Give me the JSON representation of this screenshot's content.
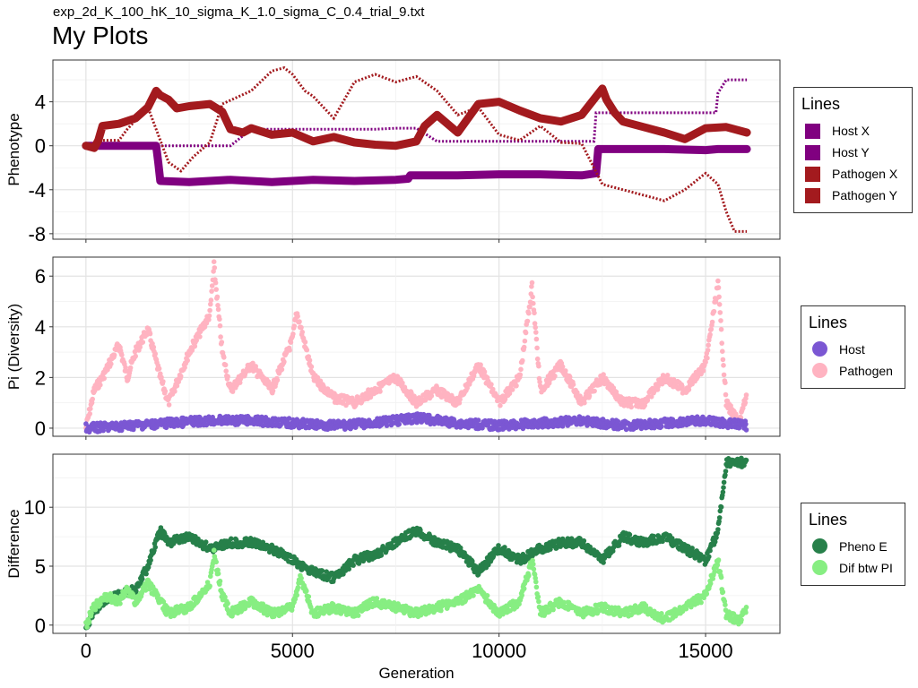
{
  "header": {
    "file_title": "exp_2d_K_100_hK_10_sigma_K_1.0_sigma_C_0.4_trial_9.txt",
    "main_title": "My Plots"
  },
  "chart_data": [
    {
      "type": "line",
      "ylabel": "Phenotype",
      "xlim": [
        -800,
        16800
      ],
      "ylim": [
        -8.5,
        7.8
      ],
      "yticks": [
        -8,
        -4,
        0,
        4
      ],
      "xticks": [
        0,
        5000,
        10000,
        15000
      ],
      "legend": {
        "title": "Lines",
        "position": "right",
        "entries": [
          {
            "label": "Host X",
            "color": "#800080"
          },
          {
            "label": "Host Y",
            "color": "#800080"
          },
          {
            "label": "Pathogen X",
            "color": "#A31A1E"
          },
          {
            "label": "Pathogen Y",
            "color": "#A31A1E"
          }
        ]
      },
      "series": [
        {
          "name": "Host X",
          "color": "#800080",
          "style": "thick",
          "x": [
            0,
            400,
            1000,
            1700,
            1750,
            1800,
            2500,
            3500,
            4500,
            5500,
            6500,
            7500,
            7800,
            7850,
            9000,
            10000,
            11000,
            12000,
            12350,
            12400,
            13000,
            14000,
            15000,
            15300,
            16000
          ],
          "y": [
            0,
            0,
            0,
            0,
            -1.5,
            -3.2,
            -3.3,
            -3.1,
            -3.3,
            -3.1,
            -3.2,
            -3.1,
            -3.0,
            -2.7,
            -2.7,
            -2.6,
            -2.6,
            -2.7,
            -2.5,
            -0.3,
            -0.3,
            -0.3,
            -0.4,
            -0.3,
            -0.3
          ]
        },
        {
          "name": "Host Y",
          "color": "#800080",
          "style": "dotted",
          "x": [
            0,
            500,
            1000,
            1500,
            2000,
            2500,
            3000,
            3500,
            4000,
            4500,
            5000,
            5500,
            6000,
            6500,
            7000,
            7500,
            8000,
            8500,
            9000,
            9500,
            10000,
            10500,
            11000,
            12000,
            12300,
            12350,
            13000,
            14000,
            15000,
            15250,
            15300,
            15500,
            16000
          ],
          "y": [
            0,
            0,
            0,
            0,
            0,
            0,
            0,
            0,
            1.5,
            1.5,
            1.5,
            1.5,
            1.5,
            1.5,
            1.5,
            1.6,
            1.6,
            0.4,
            0.4,
            0.4,
            0.4,
            0.4,
            0.4,
            0.4,
            0.4,
            3.0,
            3.0,
            3.0,
            3.0,
            3.0,
            4.8,
            6.0,
            6.0
          ]
        },
        {
          "name": "Pathogen X",
          "color": "#A31A1E",
          "style": "thick",
          "x": [
            0,
            200,
            300,
            400,
            800,
            1200,
            1500,
            1700,
            1800,
            2000,
            2200,
            2500,
            3000,
            3300,
            3500,
            3800,
            4000,
            4500,
            5000,
            5500,
            6000,
            6500,
            7000,
            7500,
            8000,
            8200,
            8500,
            9000,
            9500,
            10000,
            10500,
            11000,
            11500,
            12000,
            12500,
            12600,
            12800,
            13000,
            13500,
            14000,
            14500,
            15000,
            15500,
            16000
          ],
          "y": [
            0,
            -0.2,
            0.5,
            1.8,
            2.0,
            2.5,
            3.5,
            5.0,
            4.6,
            4.2,
            3.4,
            3.6,
            3.8,
            3.1,
            1.5,
            1.2,
            1.6,
            1.0,
            1.2,
            0.4,
            0.8,
            0.3,
            0.1,
            0.0,
            0.4,
            1.8,
            2.8,
            1.2,
            3.8,
            4.0,
            3.2,
            2.5,
            2.2,
            2.8,
            5.2,
            4.2,
            3.0,
            2.2,
            1.7,
            1.2,
            0.6,
            1.6,
            1.7,
            1.2
          ]
        },
        {
          "name": "Pathogen Y",
          "color": "#A31A1E",
          "style": "dotted",
          "x": [
            0,
            400,
            800,
            1000,
            1500,
            2000,
            2300,
            2600,
            3000,
            3300,
            4000,
            4500,
            4800,
            5000,
            5300,
            5500,
            6000,
            6500,
            7000,
            7500,
            8000,
            8500,
            9000,
            9500,
            10000,
            10500,
            11000,
            11500,
            12000,
            12500,
            13000,
            13500,
            14000,
            14500,
            15000,
            15300,
            15500,
            15700,
            16000
          ],
          "y": [
            0,
            0.5,
            0.5,
            1.5,
            3.5,
            -1.5,
            -2.3,
            -1.0,
            0.3,
            3.8,
            5.0,
            6.8,
            7.1,
            6.5,
            5.0,
            4.5,
            2.5,
            5.8,
            6.5,
            5.8,
            6.3,
            5.0,
            2.8,
            3.5,
            1.0,
            0.5,
            1.8,
            0.3,
            0.2,
            -3.5,
            -4.0,
            -4.5,
            -5.0,
            -4.0,
            -2.5,
            -3.5,
            -6.0,
            -7.8,
            -7.8
          ]
        }
      ]
    },
    {
      "type": "scatter",
      "ylabel": "Pi (Diversity)",
      "xlim": [
        -800,
        16800
      ],
      "ylim": [
        -0.32,
        6.75
      ],
      "yticks": [
        0,
        2,
        4,
        6
      ],
      "xticks": [
        0,
        5000,
        10000,
        15000
      ],
      "legend": {
        "title": "Lines",
        "position": "right",
        "entries": [
          {
            "label": "Host",
            "color": "#7B57D3"
          },
          {
            "label": "Pathogen",
            "color": "#FFB3C1"
          }
        ]
      },
      "series": [
        {
          "name": "Pathogen",
          "color": "#FFB3C1",
          "x": [
            0,
            200,
            400,
            800,
            1000,
            1200,
            1500,
            1800,
            2000,
            2500,
            3000,
            3100,
            3300,
            3500,
            4000,
            4500,
            5000,
            5100,
            5500,
            6000,
            6500,
            7000,
            7500,
            8000,
            8500,
            9000,
            9500,
            10000,
            10500,
            10800,
            11000,
            11500,
            12000,
            12500,
            13000,
            13500,
            14000,
            14500,
            15000,
            15300,
            15500,
            15800,
            16000
          ],
          "y": [
            0,
            1.5,
            2.0,
            3.3,
            2.0,
            3.0,
            3.9,
            2.0,
            1.0,
            3.0,
            4.5,
            6.4,
            3.0,
            1.5,
            2.5,
            1.5,
            3.5,
            4.6,
            2.0,
            1.2,
            1.0,
            1.5,
            2.0,
            1.0,
            1.5,
            1.0,
            2.5,
            1.0,
            2.0,
            5.6,
            1.5,
            2.5,
            1.0,
            2.0,
            1.0,
            1.0,
            2.0,
            1.5,
            2.5,
            5.7,
            1.0,
            0.2,
            1.3
          ]
        },
        {
          "name": "Host",
          "color": "#7B57D3",
          "x": [
            0,
            1000,
            2000,
            3000,
            4000,
            5000,
            6000,
            7000,
            8000,
            9000,
            10000,
            11000,
            12000,
            13000,
            14000,
            15000,
            16000
          ],
          "y": [
            0,
            0.1,
            0.2,
            0.3,
            0.3,
            0.2,
            0.1,
            0.2,
            0.4,
            0.2,
            0.1,
            0.2,
            0.3,
            0.1,
            0.2,
            0.3,
            0.1
          ]
        }
      ]
    },
    {
      "type": "scatter",
      "ylabel": "Difference",
      "xlabel": "Generation",
      "xlim": [
        -800,
        16800
      ],
      "ylim": [
        -0.7,
        14.5
      ],
      "yticks": [
        0,
        5,
        10
      ],
      "xticks": [
        0,
        5000,
        10000,
        15000
      ],
      "xtick_labels": [
        "0",
        "5000",
        "10000",
        "15000"
      ],
      "legend": {
        "title": "Lines",
        "position": "right",
        "entries": [
          {
            "label": "Pheno E",
            "color": "#27804A"
          },
          {
            "label": "Dif btw PI",
            "color": "#87EE82"
          }
        ]
      },
      "series": [
        {
          "name": "Pheno E",
          "color": "#27804A",
          "x": [
            0,
            400,
            800,
            1200,
            1500,
            1800,
            2000,
            2500,
            3000,
            3500,
            4000,
            4500,
            5000,
            5500,
            6000,
            6500,
            7000,
            7500,
            8000,
            8500,
            9000,
            9500,
            10000,
            10500,
            11000,
            11500,
            12000,
            12500,
            13000,
            13500,
            14000,
            14500,
            15000,
            15300,
            15500,
            16000
          ],
          "y": [
            0,
            2.0,
            2.5,
            3.0,
            5.0,
            8.0,
            7.0,
            7.5,
            6.5,
            7.0,
            7.0,
            6.5,
            5.5,
            4.5,
            4.0,
            5.5,
            6.0,
            7.0,
            8.0,
            7.0,
            6.5,
            4.5,
            6.5,
            5.5,
            6.5,
            7.0,
            7.0,
            5.5,
            7.5,
            7.0,
            7.5,
            6.5,
            5.5,
            8.0,
            13.8,
            13.8
          ]
        },
        {
          "name": "Dif btw PI",
          "color": "#87EE82",
          "x": [
            0,
            200,
            500,
            800,
            1000,
            1200,
            1500,
            2000,
            2500,
            3000,
            3100,
            3300,
            3500,
            4000,
            4500,
            5000,
            5200,
            5500,
            6000,
            6500,
            7000,
            7500,
            8000,
            8500,
            9000,
            9500,
            10000,
            10500,
            10800,
            11000,
            11500,
            12000,
            12500,
            13000,
            13500,
            14000,
            14500,
            15000,
            15300,
            15500,
            15800,
            16000
          ],
          "y": [
            0,
            1.5,
            2.5,
            2.0,
            3.0,
            2.0,
            3.5,
            1.0,
            1.5,
            3.5,
            6.0,
            2.5,
            1.0,
            2.0,
            1.0,
            1.5,
            4.0,
            1.0,
            1.5,
            1.0,
            2.0,
            1.5,
            1.0,
            1.5,
            2.0,
            3.0,
            1.0,
            2.0,
            5.5,
            1.0,
            2.0,
            1.0,
            1.5,
            1.0,
            1.5,
            0.5,
            1.5,
            2.5,
            5.5,
            1.0,
            0.3,
            1.3
          ]
        }
      ]
    }
  ]
}
